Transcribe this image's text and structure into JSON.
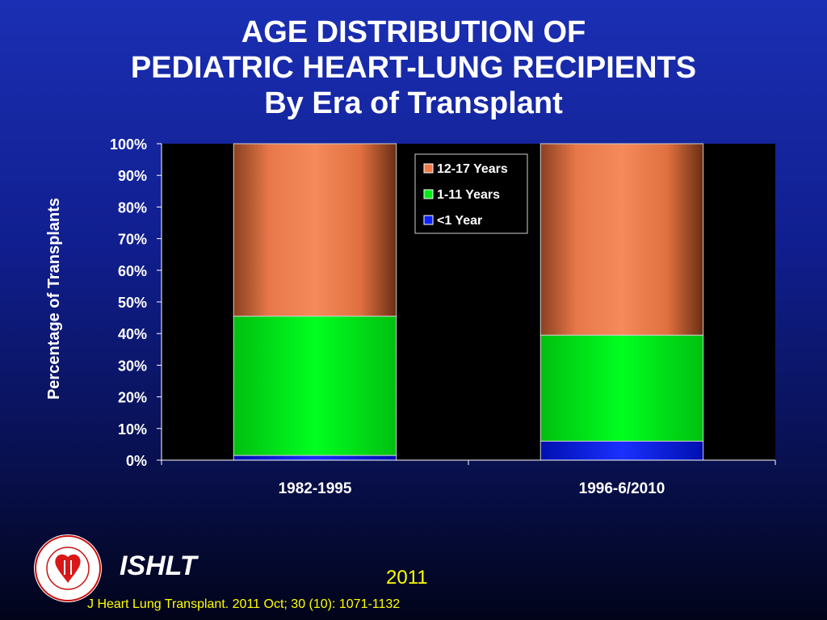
{
  "title": {
    "line1": "AGE DISTRIBUTION OF",
    "line2": "PEDIATRIC HEART-LUNG RECIPIENTS",
    "line3": "By Era of Transplant"
  },
  "chart_data": {
    "type": "bar",
    "stacked": true,
    "percent": true,
    "categories": [
      "1982-1995",
      "1996-6/2010"
    ],
    "series": [
      {
        "name": "<1 Year",
        "color": "#0a22ff",
        "values": [
          1.5,
          6
        ]
      },
      {
        "name": "1-11 Years",
        "color": "#00ee14",
        "values": [
          44,
          33.5
        ]
      },
      {
        "name": "12-17 Years",
        "color": "#f07a4a",
        "values": [
          54.5,
          60.5
        ]
      }
    ],
    "legend_order": [
      "12-17 Years",
      "1-11 Years",
      "<1 Year"
    ],
    "ylabel": "Percentage of Transplants",
    "xlabel": "",
    "ylim": [
      0,
      100
    ],
    "yticks": [
      "0%",
      "10%",
      "20%",
      "30%",
      "40%",
      "50%",
      "60%",
      "70%",
      "80%",
      "90%",
      "100%"
    ],
    "legend_position": "top-right",
    "grid": false
  },
  "footer": {
    "brand": "ISHLT",
    "year": "2011",
    "citation": "J Heart Lung Transplant. 2011 Oct; 30 (10): 1071-1132"
  },
  "logo": {
    "icon": "ishlt-seal-icon",
    "text": "INTERNATIONAL SOCIETY FOR HEART & LUNG TRANSPLANTATION"
  }
}
